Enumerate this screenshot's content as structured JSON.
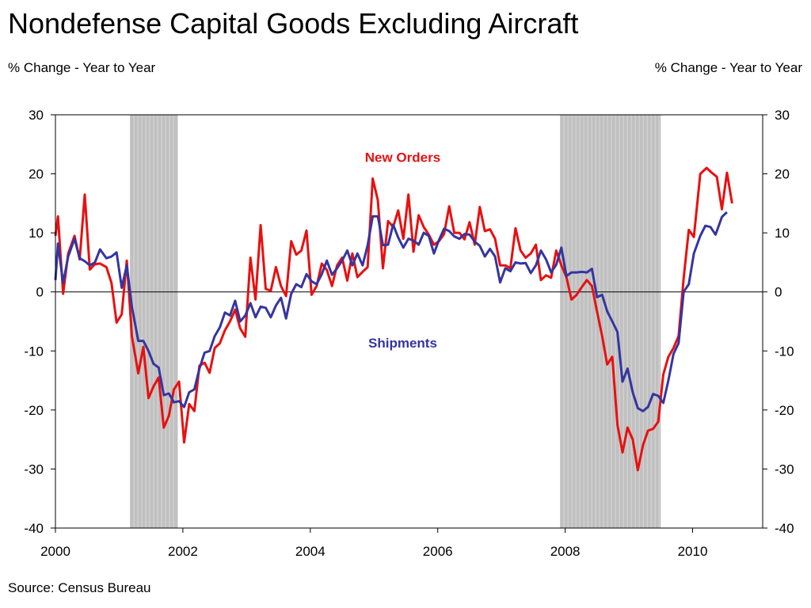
{
  "chart_data": {
    "type": "line",
    "title": "Nondefense Capital Goods Excluding Aircraft",
    "ylabel_left": "% Change - Year to Year",
    "ylabel_right": "% Change - Year to Year",
    "source": "Source: Census Bureau",
    "xlim": [
      2000,
      2011.1
    ],
    "ylim": [
      -40,
      30
    ],
    "x_ticks": [
      2000,
      2002,
      2004,
      2006,
      2008,
      2010
    ],
    "y_ticks": [
      30,
      20,
      10,
      0,
      -10,
      -20,
      -30,
      -40
    ],
    "zero_line": true,
    "grid": false,
    "recessions": [
      {
        "start": 2001.17,
        "end": 2001.92
      },
      {
        "start": 2007.92,
        "end": 2009.5
      }
    ],
    "recession_color": "#c0c0c0",
    "series": [
      {
        "name": "New Orders",
        "color": "#e81010",
        "label_pos": {
          "x": 2005.45,
          "y": 22
        },
        "points": [
          [
            2000.0,
            9.5
          ],
          [
            2000.04,
            12.8
          ],
          [
            2000.12,
            -0.3
          ],
          [
            2000.2,
            6.5
          ],
          [
            2000.3,
            9.5
          ],
          [
            2000.38,
            5.5
          ],
          [
            2000.46,
            16.5
          ],
          [
            2000.54,
            3.8
          ],
          [
            2000.62,
            4.7
          ],
          [
            2000.7,
            4.8
          ],
          [
            2000.8,
            4.2
          ],
          [
            2000.88,
            1.5
          ],
          [
            2000.96,
            -5.2
          ],
          [
            2001.04,
            -3.8
          ],
          [
            2001.12,
            5.3
          ],
          [
            2001.2,
            -7.5
          ],
          [
            2001.3,
            -13.8
          ],
          [
            2001.38,
            -9.3
          ],
          [
            2001.46,
            -18.0
          ],
          [
            2001.54,
            -16.0
          ],
          [
            2001.62,
            -14.5
          ],
          [
            2001.7,
            -23.0
          ],
          [
            2001.78,
            -21.0
          ],
          [
            2001.86,
            -16.5
          ],
          [
            2001.94,
            -15.2
          ],
          [
            2002.02,
            -25.5
          ],
          [
            2002.1,
            -19.0
          ],
          [
            2002.18,
            -20.2
          ],
          [
            2002.26,
            -12.5
          ],
          [
            2002.34,
            -12.0
          ],
          [
            2002.42,
            -13.7
          ],
          [
            2002.5,
            -9.5
          ],
          [
            2002.58,
            -8.7
          ],
          [
            2002.66,
            -6.5
          ],
          [
            2002.74,
            -5.0
          ],
          [
            2002.82,
            -3.0
          ],
          [
            2002.9,
            -6.2
          ],
          [
            2002.98,
            -7.6
          ],
          [
            2003.06,
            5.8
          ],
          [
            2003.14,
            -1.3
          ],
          [
            2003.22,
            11.3
          ],
          [
            2003.3,
            0.5
          ],
          [
            2003.38,
            0.2
          ],
          [
            2003.46,
            4.2
          ],
          [
            2003.54,
            1.0
          ],
          [
            2003.62,
            -0.7
          ],
          [
            2003.7,
            8.6
          ],
          [
            2003.78,
            6.3
          ],
          [
            2003.86,
            7.0
          ],
          [
            2003.94,
            10.4
          ],
          [
            2004.02,
            -0.5
          ],
          [
            2004.1,
            1.0
          ],
          [
            2004.18,
            4.8
          ],
          [
            2004.26,
            3.7
          ],
          [
            2004.34,
            1.0
          ],
          [
            2004.42,
            4.5
          ],
          [
            2004.5,
            5.8
          ],
          [
            2004.58,
            1.9
          ],
          [
            2004.66,
            6.5
          ],
          [
            2004.74,
            2.5
          ],
          [
            2004.82,
            3.4
          ],
          [
            2004.9,
            4.2
          ],
          [
            2004.98,
            19.2
          ],
          [
            2005.06,
            15.5
          ],
          [
            2005.14,
            4.0
          ],
          [
            2005.22,
            12.0
          ],
          [
            2005.3,
            11.0
          ],
          [
            2005.38,
            13.8
          ],
          [
            2005.46,
            9.0
          ],
          [
            2005.54,
            16.5
          ],
          [
            2005.62,
            6.8
          ],
          [
            2005.7,
            13.0
          ],
          [
            2005.78,
            11.0
          ],
          [
            2005.86,
            9.7
          ],
          [
            2005.94,
            8.0
          ],
          [
            2006.02,
            8.6
          ],
          [
            2006.1,
            9.8
          ],
          [
            2006.18,
            14.5
          ],
          [
            2006.26,
            10.0
          ],
          [
            2006.34,
            10.0
          ],
          [
            2006.42,
            8.9
          ],
          [
            2006.5,
            11.8
          ],
          [
            2006.58,
            8.0
          ],
          [
            2006.66,
            14.4
          ],
          [
            2006.74,
            10.3
          ],
          [
            2006.82,
            10.6
          ],
          [
            2006.9,
            9.0
          ],
          [
            2006.98,
            4.5
          ],
          [
            2007.06,
            4.5
          ],
          [
            2007.14,
            4.0
          ],
          [
            2007.22,
            10.8
          ],
          [
            2007.3,
            7.0
          ],
          [
            2007.38,
            5.8
          ],
          [
            2007.46,
            6.5
          ],
          [
            2007.54,
            8.0
          ],
          [
            2007.62,
            2.0
          ],
          [
            2007.7,
            2.8
          ],
          [
            2007.78,
            2.4
          ],
          [
            2007.86,
            7.0
          ],
          [
            2007.94,
            4.5
          ],
          [
            2008.02,
            2.5
          ],
          [
            2008.1,
            -1.3
          ],
          [
            2008.18,
            -0.5
          ],
          [
            2008.26,
            0.8
          ],
          [
            2008.34,
            2.0
          ],
          [
            2008.42,
            1.0
          ],
          [
            2008.5,
            -3.3
          ],
          [
            2008.58,
            -7.5
          ],
          [
            2008.66,
            -12.3
          ],
          [
            2008.74,
            -11.0
          ],
          [
            2008.82,
            -22.5
          ],
          [
            2008.9,
            -27.2
          ],
          [
            2008.98,
            -23.0
          ],
          [
            2009.06,
            -25.0
          ],
          [
            2009.14,
            -30.2
          ],
          [
            2009.22,
            -26.0
          ],
          [
            2009.3,
            -23.5
          ],
          [
            2009.38,
            -23.2
          ],
          [
            2009.46,
            -22.0
          ],
          [
            2009.54,
            -14.0
          ],
          [
            2009.62,
            -11.0
          ],
          [
            2009.7,
            -9.5
          ],
          [
            2009.78,
            -7.5
          ],
          [
            2009.86,
            2.3
          ],
          [
            2009.94,
            10.5
          ],
          [
            2010.02,
            9.3
          ],
          [
            2010.12,
            20.0
          ],
          [
            2010.22,
            21.0
          ],
          [
            2010.3,
            20.2
          ],
          [
            2010.38,
            19.5
          ],
          [
            2010.46,
            14.0
          ],
          [
            2010.54,
            20.2
          ],
          [
            2010.62,
            15.0
          ]
        ]
      },
      {
        "name": "Shipments",
        "color": "#3535a0",
        "label_pos": {
          "x": 2005.45,
          "y": -9.4
        },
        "points": [
          [
            2000.0,
            2.0
          ],
          [
            2000.04,
            8.2
          ],
          [
            2000.12,
            1.5
          ],
          [
            2000.2,
            6.0
          ],
          [
            2000.3,
            9.0
          ],
          [
            2000.38,
            5.7
          ],
          [
            2000.46,
            5.2
          ],
          [
            2000.54,
            4.5
          ],
          [
            2000.62,
            5.0
          ],
          [
            2000.7,
            7.2
          ],
          [
            2000.8,
            5.7
          ],
          [
            2000.88,
            6.0
          ],
          [
            2000.96,
            6.7
          ],
          [
            2001.04,
            0.7
          ],
          [
            2001.12,
            4.5
          ],
          [
            2001.2,
            -2.5
          ],
          [
            2001.3,
            -8.3
          ],
          [
            2001.38,
            -8.3
          ],
          [
            2001.46,
            -10.0
          ],
          [
            2001.54,
            -12.2
          ],
          [
            2001.62,
            -12.8
          ],
          [
            2001.7,
            -17.5
          ],
          [
            2001.78,
            -17.2
          ],
          [
            2001.86,
            -18.7
          ],
          [
            2001.94,
            -18.5
          ],
          [
            2002.02,
            -19.5
          ],
          [
            2002.1,
            -17.0
          ],
          [
            2002.18,
            -16.5
          ],
          [
            2002.26,
            -13.0
          ],
          [
            2002.34,
            -10.3
          ],
          [
            2002.42,
            -10.0
          ],
          [
            2002.5,
            -7.5
          ],
          [
            2002.58,
            -6.0
          ],
          [
            2002.66,
            -3.5
          ],
          [
            2002.74,
            -4.0
          ],
          [
            2002.82,
            -1.5
          ],
          [
            2002.9,
            -5.0
          ],
          [
            2002.98,
            -4.0
          ],
          [
            2003.06,
            -1.9
          ],
          [
            2003.14,
            -4.3
          ],
          [
            2003.22,
            -2.5
          ],
          [
            2003.3,
            -2.7
          ],
          [
            2003.38,
            -4.3
          ],
          [
            2003.46,
            -2.3
          ],
          [
            2003.54,
            -1.0
          ],
          [
            2003.62,
            -4.5
          ],
          [
            2003.7,
            -0.3
          ],
          [
            2003.78,
            1.3
          ],
          [
            2003.86,
            0.8
          ],
          [
            2003.94,
            3.0
          ],
          [
            2004.02,
            1.8
          ],
          [
            2004.1,
            1.3
          ],
          [
            2004.18,
            3.0
          ],
          [
            2004.26,
            5.3
          ],
          [
            2004.34,
            2.9
          ],
          [
            2004.42,
            4.0
          ],
          [
            2004.5,
            5.3
          ],
          [
            2004.58,
            7.0
          ],
          [
            2004.66,
            4.5
          ],
          [
            2004.74,
            6.5
          ],
          [
            2004.82,
            4.5
          ],
          [
            2004.9,
            7.9
          ],
          [
            2004.98,
            12.8
          ],
          [
            2005.06,
            12.8
          ],
          [
            2005.14,
            7.9
          ],
          [
            2005.22,
            8.0
          ],
          [
            2005.3,
            11.4
          ],
          [
            2005.38,
            9.2
          ],
          [
            2005.46,
            7.5
          ],
          [
            2005.54,
            9.0
          ],
          [
            2005.62,
            8.7
          ],
          [
            2005.7,
            8.0
          ],
          [
            2005.78,
            10.0
          ],
          [
            2005.86,
            9.5
          ],
          [
            2005.94,
            6.5
          ],
          [
            2006.02,
            8.8
          ],
          [
            2006.1,
            10.7
          ],
          [
            2006.18,
            10.3
          ],
          [
            2006.26,
            9.4
          ],
          [
            2006.34,
            9.0
          ],
          [
            2006.42,
            9.8
          ],
          [
            2006.5,
            9.7
          ],
          [
            2006.58,
            8.5
          ],
          [
            2006.66,
            7.8
          ],
          [
            2006.74,
            6.0
          ],
          [
            2006.82,
            7.3
          ],
          [
            2006.9,
            6.0
          ],
          [
            2006.98,
            1.6
          ],
          [
            2007.06,
            4.0
          ],
          [
            2007.14,
            3.5
          ],
          [
            2007.22,
            5.0
          ],
          [
            2007.3,
            4.8
          ],
          [
            2007.38,
            4.9
          ],
          [
            2007.46,
            3.2
          ],
          [
            2007.54,
            4.5
          ],
          [
            2007.62,
            7.0
          ],
          [
            2007.7,
            5.5
          ],
          [
            2007.78,
            3.3
          ],
          [
            2007.86,
            4.6
          ],
          [
            2007.94,
            7.5
          ],
          [
            2008.02,
            2.7
          ],
          [
            2008.1,
            3.3
          ],
          [
            2008.18,
            3.3
          ],
          [
            2008.26,
            3.4
          ],
          [
            2008.34,
            3.3
          ],
          [
            2008.42,
            3.9
          ],
          [
            2008.5,
            -0.9
          ],
          [
            2008.58,
            -0.5
          ],
          [
            2008.66,
            -3.3
          ],
          [
            2008.74,
            -5.0
          ],
          [
            2008.82,
            -6.8
          ],
          [
            2008.9,
            -15.2
          ],
          [
            2008.98,
            -13.0
          ],
          [
            2009.06,
            -17.0
          ],
          [
            2009.14,
            -19.7
          ],
          [
            2009.22,
            -20.2
          ],
          [
            2009.3,
            -19.5
          ],
          [
            2009.38,
            -17.3
          ],
          [
            2009.46,
            -17.6
          ],
          [
            2009.54,
            -18.8
          ],
          [
            2009.62,
            -15.0
          ],
          [
            2009.7,
            -10.5
          ],
          [
            2009.78,
            -8.7
          ],
          [
            2009.86,
            0.0
          ],
          [
            2009.94,
            1.3
          ],
          [
            2010.02,
            6.5
          ],
          [
            2010.12,
            9.5
          ],
          [
            2010.2,
            11.2
          ],
          [
            2010.28,
            11.0
          ],
          [
            2010.36,
            9.7
          ],
          [
            2010.46,
            12.7
          ],
          [
            2010.54,
            13.5
          ]
        ]
      }
    ]
  }
}
